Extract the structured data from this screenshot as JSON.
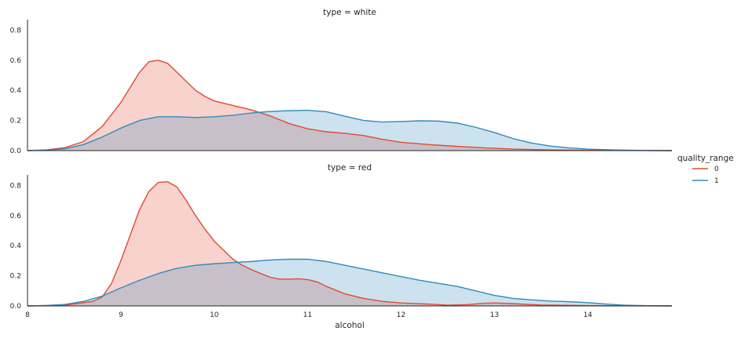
{
  "chart_data": {
    "type": "area",
    "kind": "kde-facet",
    "xlabel": "alcohol",
    "xlim": [
      8,
      14.9
    ],
    "ylim": [
      0,
      0.87
    ],
    "x_ticks": [
      "8",
      "9",
      "10",
      "11",
      "12",
      "13",
      "14"
    ],
    "y_ticks": [
      "0.0",
      "0.2",
      "0.4",
      "0.6",
      "0.8"
    ],
    "legend": {
      "title": "quality_range",
      "placement": "right",
      "entries": [
        {
          "label": "0",
          "color": "#e24a33"
        },
        {
          "label": "1",
          "color": "#348abd"
        }
      ]
    },
    "facets": [
      {
        "title": "type = white",
        "series": [
          {
            "name": "0",
            "color": "#e24a33",
            "points": [
              [
                8.0,
                0.0
              ],
              [
                8.2,
                0.005
              ],
              [
                8.4,
                0.02
              ],
              [
                8.6,
                0.06
              ],
              [
                8.8,
                0.16
              ],
              [
                9.0,
                0.32
              ],
              [
                9.1,
                0.42
              ],
              [
                9.2,
                0.52
              ],
              [
                9.3,
                0.59
              ],
              [
                9.4,
                0.6
              ],
              [
                9.5,
                0.58
              ],
              [
                9.6,
                0.52
              ],
              [
                9.7,
                0.46
              ],
              [
                9.8,
                0.4
              ],
              [
                9.9,
                0.36
              ],
              [
                10.0,
                0.33
              ],
              [
                10.2,
                0.3
              ],
              [
                10.4,
                0.27
              ],
              [
                10.6,
                0.23
              ],
              [
                10.8,
                0.18
              ],
              [
                11.0,
                0.145
              ],
              [
                11.2,
                0.125
              ],
              [
                11.4,
                0.115
              ],
              [
                11.6,
                0.1
              ],
              [
                11.8,
                0.075
              ],
              [
                12.0,
                0.055
              ],
              [
                12.3,
                0.04
              ],
              [
                12.6,
                0.028
              ],
              [
                12.9,
                0.018
              ],
              [
                13.2,
                0.01
              ],
              [
                13.6,
                0.005
              ],
              [
                14.0,
                0.002
              ],
              [
                14.5,
                0.001
              ],
              [
                14.9,
                0.0
              ]
            ]
          },
          {
            "name": "1",
            "color": "#348abd",
            "points": [
              [
                8.0,
                0.0
              ],
              [
                8.2,
                0.003
              ],
              [
                8.4,
                0.012
              ],
              [
                8.6,
                0.04
              ],
              [
                8.8,
                0.09
              ],
              [
                9.0,
                0.15
              ],
              [
                9.2,
                0.2
              ],
              [
                9.4,
                0.225
              ],
              [
                9.6,
                0.225
              ],
              [
                9.8,
                0.22
              ],
              [
                10.0,
                0.225
              ],
              [
                10.2,
                0.235
              ],
              [
                10.4,
                0.25
              ],
              [
                10.6,
                0.26
              ],
              [
                10.8,
                0.265
              ],
              [
                11.0,
                0.268
              ],
              [
                11.2,
                0.258
              ],
              [
                11.4,
                0.228
              ],
              [
                11.6,
                0.2
              ],
              [
                11.8,
                0.19
              ],
              [
                12.0,
                0.193
              ],
              [
                12.2,
                0.198
              ],
              [
                12.4,
                0.196
              ],
              [
                12.6,
                0.183
              ],
              [
                12.8,
                0.155
              ],
              [
                13.0,
                0.12
              ],
              [
                13.2,
                0.08
              ],
              [
                13.4,
                0.05
              ],
              [
                13.6,
                0.03
              ],
              [
                13.8,
                0.018
              ],
              [
                14.0,
                0.01
              ],
              [
                14.3,
                0.004
              ],
              [
                14.6,
                0.001
              ],
              [
                14.9,
                0.0
              ]
            ]
          }
        ]
      },
      {
        "title": "type = red",
        "series": [
          {
            "name": "0",
            "color": "#e24a33",
            "points": [
              [
                8.0,
                0.0
              ],
              [
                8.4,
                0.005
              ],
              [
                8.7,
                0.03
              ],
              [
                8.8,
                0.06
              ],
              [
                8.9,
                0.15
              ],
              [
                9.0,
                0.3
              ],
              [
                9.1,
                0.47
              ],
              [
                9.2,
                0.64
              ],
              [
                9.3,
                0.76
              ],
              [
                9.4,
                0.82
              ],
              [
                9.5,
                0.825
              ],
              [
                9.6,
                0.79
              ],
              [
                9.7,
                0.7
              ],
              [
                9.8,
                0.6
              ],
              [
                9.9,
                0.51
              ],
              [
                10.0,
                0.43
              ],
              [
                10.1,
                0.37
              ],
              [
                10.2,
                0.31
              ],
              [
                10.3,
                0.27
              ],
              [
                10.4,
                0.24
              ],
              [
                10.5,
                0.215
              ],
              [
                10.6,
                0.19
              ],
              [
                10.7,
                0.178
              ],
              [
                10.8,
                0.178
              ],
              [
                10.9,
                0.18
              ],
              [
                11.0,
                0.175
              ],
              [
                11.1,
                0.16
              ],
              [
                11.2,
                0.13
              ],
              [
                11.4,
                0.08
              ],
              [
                11.6,
                0.05
              ],
              [
                11.8,
                0.03
              ],
              [
                12.0,
                0.02
              ],
              [
                12.3,
                0.012
              ],
              [
                12.5,
                0.005
              ],
              [
                12.7,
                0.008
              ],
              [
                12.9,
                0.018
              ],
              [
                13.0,
                0.02
              ],
              [
                13.2,
                0.015
              ],
              [
                13.5,
                0.006
              ],
              [
                14.0,
                0.002
              ],
              [
                14.9,
                0.0
              ]
            ]
          },
          {
            "name": "1",
            "color": "#348abd",
            "points": [
              [
                8.0,
                0.0
              ],
              [
                8.2,
                0.003
              ],
              [
                8.4,
                0.01
              ],
              [
                8.6,
                0.03
              ],
              [
                8.8,
                0.065
              ],
              [
                9.0,
                0.12
              ],
              [
                9.2,
                0.17
              ],
              [
                9.4,
                0.215
              ],
              [
                9.6,
                0.25
              ],
              [
                9.8,
                0.27
              ],
              [
                10.0,
                0.28
              ],
              [
                10.2,
                0.288
              ],
              [
                10.4,
                0.295
              ],
              [
                10.6,
                0.305
              ],
              [
                10.8,
                0.31
              ],
              [
                11.0,
                0.31
              ],
              [
                11.2,
                0.295
              ],
              [
                11.4,
                0.27
              ],
              [
                11.6,
                0.245
              ],
              [
                11.8,
                0.22
              ],
              [
                12.0,
                0.195
              ],
              [
                12.2,
                0.17
              ],
              [
                12.4,
                0.15
              ],
              [
                12.6,
                0.13
              ],
              [
                12.8,
                0.1
              ],
              [
                13.0,
                0.07
              ],
              [
                13.2,
                0.05
              ],
              [
                13.4,
                0.04
              ],
              [
                13.6,
                0.032
              ],
              [
                13.8,
                0.028
              ],
              [
                14.0,
                0.022
              ],
              [
                14.2,
                0.012
              ],
              [
                14.4,
                0.005
              ],
              [
                14.6,
                0.002
              ],
              [
                14.9,
                0.0
              ]
            ]
          }
        ]
      }
    ]
  }
}
